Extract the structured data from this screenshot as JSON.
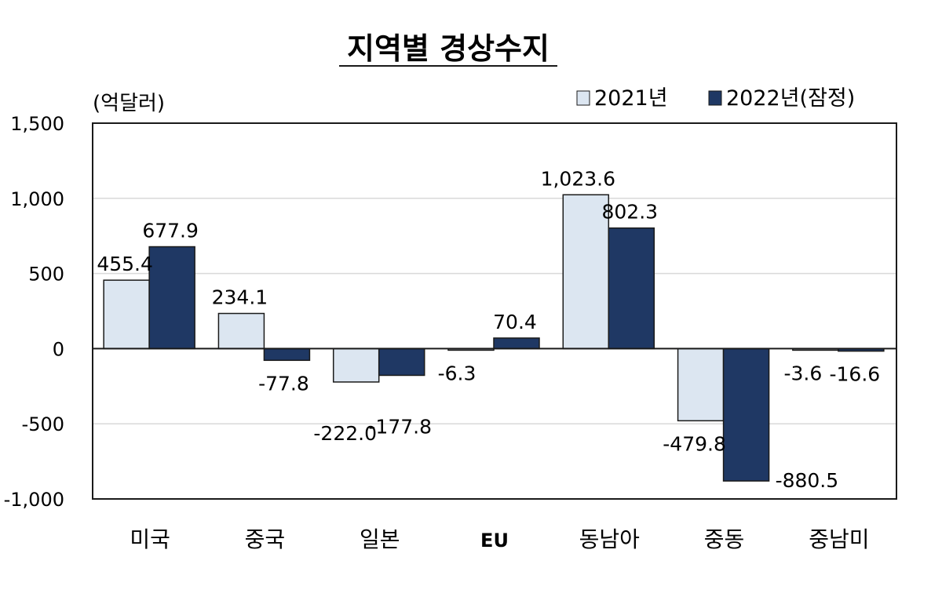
{
  "chart_data": {
    "type": "bar",
    "title": "지역별 경상수지",
    "unit_label": "(억달러)",
    "categories": [
      "미국",
      "중국",
      "일본",
      "EU",
      "동남아",
      "중동",
      "중남미"
    ],
    "series": [
      {
        "name": "2021년",
        "values": [
          455.4,
          234.1,
          -222.0,
          -6.3,
          1023.6,
          -479.8,
          -3.6
        ],
        "color": "#dce6f1"
      },
      {
        "name": "2022년(잠정)",
        "values": [
          677.9,
          -77.8,
          -177.8,
          70.4,
          802.3,
          -880.5,
          -16.6
        ],
        "color": "#1f3864"
      }
    ],
    "data_labels": [
      [
        "455.4",
        "234.1",
        "-222.0",
        "-6.3",
        "1,023.6",
        "-479.8",
        "-3.6"
      ],
      [
        "677.9",
        "-77.8",
        "-177.8",
        "70.4",
        "802.3",
        "-880.5",
        "-16.6"
      ]
    ],
    "yticks": [
      1500,
      1000,
      500,
      0,
      -500,
      -1000
    ],
    "ytick_labels": [
      "1,500",
      "1,000",
      "500",
      "0",
      "-500",
      "-1,000"
    ],
    "ylim": [
      -1000,
      1500
    ],
    "grid": true,
    "legend_position": "top-right"
  }
}
